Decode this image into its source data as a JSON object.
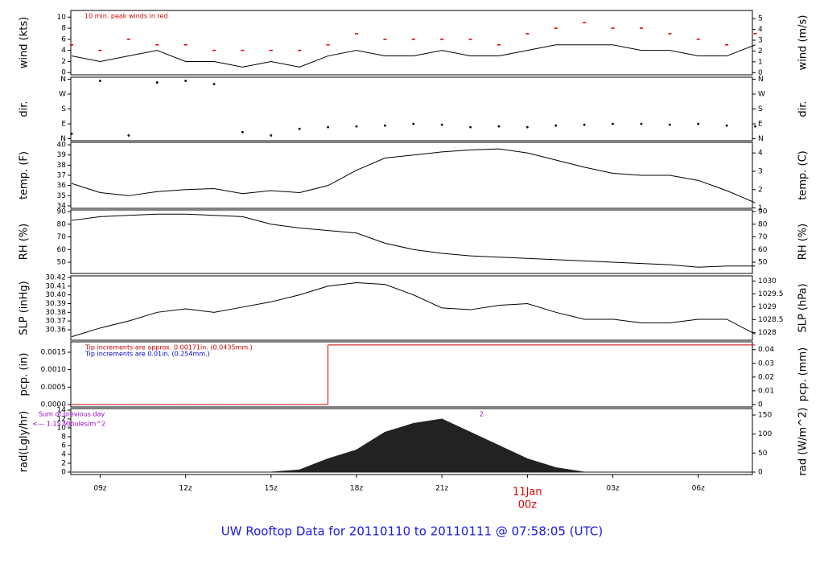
{
  "title": "UW Rooftop Data for 20110110  to  20110111 @ 07:58:05  (UTC)",
  "chart_data": [
    {
      "type": "line",
      "ylabel": "wind (kts)",
      "y2label": "wind (m/s)",
      "x": [
        8,
        9,
        10,
        11,
        12,
        13,
        14,
        15,
        16,
        17,
        18,
        19,
        20,
        21,
        22,
        23,
        24,
        25,
        26,
        27,
        28,
        29,
        30,
        31,
        32
      ],
      "values": [
        3,
        2,
        3,
        4,
        2,
        2,
        1,
        2,
        1,
        3,
        4,
        3,
        3,
        4,
        3,
        3,
        4,
        5,
        5,
        5,
        4,
        4,
        3,
        3,
        5
      ],
      "peaks": [
        5,
        4,
        6,
        5,
        5,
        4,
        4,
        4,
        4,
        5,
        7,
        6,
        6,
        6,
        6,
        5,
        7,
        8,
        9,
        8,
        8,
        7,
        6,
        5,
        7
      ],
      "color": "#000000",
      "peak_color": "#e00000",
      "notes": [
        {
          "text": "10 min. peak winds in red",
          "color": "#d00000"
        }
      ],
      "xlim": [
        7.97,
        31.9
      ],
      "ylim": [
        -0.4,
        11.2
      ],
      "yticks": [
        0,
        2,
        4,
        6,
        8,
        10
      ],
      "y2lim": [
        -0.2,
        5.76
      ],
      "y2ticks": [
        0,
        1,
        2,
        3,
        4,
        5
      ]
    },
    {
      "type": "scatter",
      "ylabel": "dir.",
      "y2label": "dir.",
      "x": [
        8,
        9,
        10,
        11,
        12,
        13,
        14,
        15,
        16,
        17,
        18,
        19,
        20,
        21,
        22,
        23,
        24,
        25,
        26,
        27,
        28,
        29,
        30,
        31,
        32
      ],
      "values": [
        30,
        350,
        20,
        340,
        350,
        330,
        40,
        20,
        60,
        70,
        75,
        80,
        90,
        85,
        70,
        75,
        70,
        80,
        85,
        90,
        90,
        85,
        90,
        80,
        75
      ],
      "color": "#000000",
      "xlim": [
        7.97,
        31.9
      ],
      "ylim": [
        -12,
        372
      ],
      "yticks": [
        {
          "value": 0,
          "label": "N"
        },
        {
          "value": 90,
          "label": "E"
        },
        {
          "value": 180,
          "label": "S"
        },
        {
          "value": 270,
          "label": "W"
        },
        {
          "value": 360,
          "label": "N"
        }
      ],
      "y2lim": [
        -12,
        372
      ],
      "y2ticks": [
        {
          "value": 0,
          "label": "N"
        },
        {
          "value": 90,
          "label": "E"
        },
        {
          "value": 180,
          "label": "S"
        },
        {
          "value": 270,
          "label": "W"
        },
        {
          "value": 360,
          "label": "N"
        }
      ]
    },
    {
      "type": "line",
      "ylabel": "temp. (F)",
      "y2label": "temp. (C)",
      "x": [
        8,
        9,
        10,
        11,
        12,
        13,
        14,
        15,
        16,
        17,
        18,
        19,
        20,
        21,
        22,
        23,
        24,
        25,
        26,
        27,
        28,
        29,
        30,
        31,
        32
      ],
      "values": [
        36.2,
        35.3,
        35,
        35.4,
        35.6,
        35.7,
        35.2,
        35.5,
        35.3,
        36,
        37.5,
        38.7,
        39,
        39.3,
        39.5,
        39.6,
        39.2,
        38.5,
        37.8,
        37.2,
        37,
        37,
        36.5,
        35.5,
        34.3
      ],
      "color": "#000000",
      "xlim": [
        7.97,
        31.9
      ],
      "ylim": [
        33.76,
        40.24
      ],
      "yticks": [
        34,
        35,
        36,
        37,
        38,
        39,
        40
      ],
      "y2lim": [
        0.98,
        4.58
      ],
      "y2ticks": [
        1,
        2,
        3,
        4
      ]
    },
    {
      "type": "line",
      "ylabel": "RH (%)",
      "y2label": "RH (%)",
      "x": [
        8,
        9,
        10,
        11,
        12,
        13,
        14,
        15,
        16,
        17,
        18,
        19,
        20,
        21,
        22,
        23,
        24,
        25,
        26,
        27,
        28,
        29,
        30,
        31,
        32
      ],
      "values": [
        83,
        86,
        87,
        88,
        88,
        87,
        86,
        80,
        77,
        75,
        73,
        65,
        60,
        57,
        55,
        54,
        53,
        52,
        51,
        50,
        49,
        48,
        46,
        47,
        47
      ],
      "color": "#000000",
      "xlim": [
        7.97,
        31.9
      ],
      "ylim": [
        41.1,
        91.3
      ],
      "yticks": [
        50,
        60,
        70,
        80,
        90
      ],
      "y2lim": [
        41.1,
        91.3
      ],
      "y2ticks": [
        50,
        60,
        70,
        80,
        90
      ]
    },
    {
      "type": "line",
      "ylabel": "SLP (inHg)",
      "y2label": "SLP (hPa)",
      "x": [
        8,
        9,
        10,
        11,
        12,
        13,
        14,
        15,
        16,
        17,
        18,
        19,
        20,
        21,
        22,
        23,
        24,
        25,
        26,
        27,
        28,
        29,
        30,
        31,
        32
      ],
      "values": [
        30.352,
        30.362,
        30.37,
        30.38,
        30.384,
        30.38,
        30.386,
        30.392,
        30.4,
        30.41,
        30.414,
        30.412,
        30.4,
        30.385,
        30.383,
        30.388,
        30.39,
        30.38,
        30.372,
        30.372,
        30.368,
        30.368,
        30.372,
        30.372,
        30.355
      ],
      "color": "#000000",
      "xlim": [
        7.97,
        31.9
      ],
      "ylim": [
        30.348,
        30.4218
      ],
      "yticks": [
        30.36,
        30.37,
        30.38,
        30.39,
        {
          "value": 30.4,
          "label": "30.40"
        },
        30.41,
        30.42
      ],
      "y2lim": [
        1027.7,
        1030.2
      ],
      "y2ticks": [
        1028,
        1028.5,
        1029,
        1029.5,
        1030
      ]
    },
    {
      "type": "step",
      "ylabel": "pcp. (in)",
      "y2label": "pcp. (mm)",
      "x": [
        8,
        9,
        10,
        11,
        12,
        13,
        14,
        15,
        16,
        17,
        18,
        19,
        20,
        21,
        22,
        23,
        24,
        25,
        26,
        27,
        28,
        29,
        30,
        31,
        32
      ],
      "values": [
        0,
        0,
        0,
        0,
        0,
        0,
        0,
        0,
        0,
        0.00171,
        0.00171,
        0.00171,
        0.00171,
        0.00171,
        0.00171,
        0.00171,
        0.00171,
        0.00171,
        0.00171,
        0.00171,
        0.00171,
        0.00171,
        0.00171,
        0.00171,
        0.00171
      ],
      "color": "#cc0000",
      "notes": [
        {
          "text": "Tip increments are approx. 0.00171in. (0.0435mm.)",
          "color": "#cc0000"
        },
        {
          "text": "Tip increments are 0.01in. (0.254mm.)",
          "color": "#0000cc"
        }
      ],
      "xlim": [
        7.97,
        31.9
      ],
      "ylim": [
        -7e-05,
        0.0018
      ],
      "yticks": [
        {
          "value": 0,
          "label": "0.0000"
        },
        {
          "value": 0.0005,
          "label": "0.0005"
        },
        {
          "value": 0.001,
          "label": "0.0010"
        },
        {
          "value": 0.0015,
          "label": "0.0015"
        }
      ],
      "y2lim": [
        -0.0018,
        0.0457
      ],
      "y2ticks": [
        0,
        0.01,
        0.02,
        0.03,
        0.04
      ]
    },
    {
      "type": "area",
      "ylabel": "rad(Lgly/hr)",
      "y2label": "rad (W/m^2)",
      "x": [
        8,
        9,
        10,
        11,
        12,
        13,
        14,
        15,
        16,
        17,
        18,
        19,
        20,
        21,
        22,
        23,
        24,
        25,
        26,
        27,
        28,
        29,
        30,
        31,
        32
      ],
      "values": [
        0,
        0,
        0,
        0,
        0,
        0,
        0,
        0,
        0.5,
        3,
        5,
        9,
        11,
        12,
        9,
        6,
        3,
        1,
        0,
        0,
        0,
        0,
        0,
        0,
        0
      ],
      "color": "#222222",
      "notes": [
        {
          "text": "Sum of previous day",
          "color": "#9900cc"
        },
        {
          "text": "<--- 1.15 MJoules/m^2",
          "color": "#9900cc"
        },
        {
          "text": "2",
          "color": "#9900cc"
        }
      ],
      "xlim": [
        7.97,
        31.9
      ],
      "ylim": [
        -0.55,
        14.36
      ],
      "yticks": [
        0,
        2,
        4,
        6,
        8,
        10,
        12,
        14
      ],
      "y2lim": [
        -6.4,
        167
      ],
      "y2ticks": [
        0,
        50,
        100,
        150
      ],
      "xticks": [
        {
          "value": 9,
          "label": "09z"
        },
        {
          "value": 12,
          "label": "12z"
        },
        {
          "value": 15,
          "label": "15z"
        },
        {
          "value": 18,
          "label": "18z"
        },
        {
          "value": 21,
          "label": "21z"
        },
        {
          "value": 24,
          "label": "00z"
        },
        {
          "value": 27,
          "label": "03z"
        },
        {
          "value": 30,
          "label": "06z"
        }
      ],
      "date_label": "11Jan"
    }
  ]
}
